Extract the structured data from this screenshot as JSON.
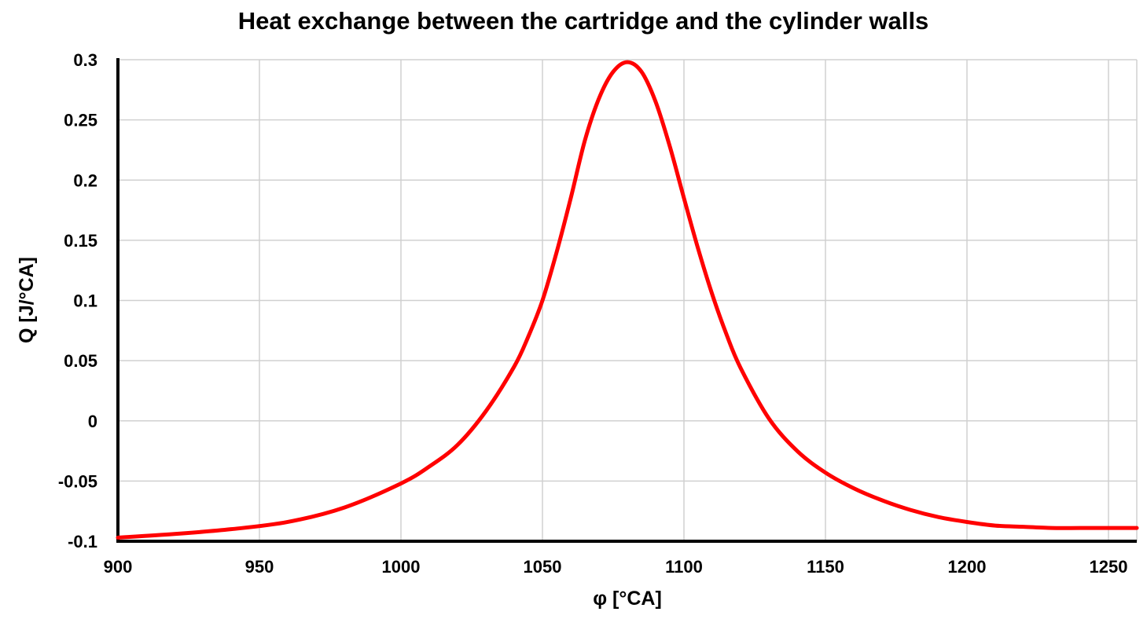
{
  "chart_data": {
    "type": "line",
    "title": "Heat exchange between the cartridge and the cylinder walls",
    "xlabel": "φ [°CA]",
    "ylabel": "Q [J/°CA]",
    "xlim": [
      900,
      1260
    ],
    "ylim": [
      -0.1,
      0.3
    ],
    "x_ticks": [
      900,
      950,
      1000,
      1050,
      1100,
      1150,
      1200,
      1250
    ],
    "y_ticks": [
      -0.1,
      -0.05,
      0,
      0.05,
      0.1,
      0.15,
      0.2,
      0.25,
      0.3
    ],
    "x_tick_labels": [
      "900",
      "950",
      "1000",
      "1050",
      "1100",
      "1150",
      "1200",
      "1250"
    ],
    "y_tick_labels": [
      "-0.1",
      "-0.05",
      "0",
      "0.05",
      "0.1",
      "0.15",
      "0.2",
      "0.25",
      "0.3"
    ],
    "grid": true,
    "legend": "none",
    "series": [
      {
        "color": "#ff0000",
        "x": [
          900,
          920,
          940,
          960,
          980,
          1000,
          1010,
          1020,
          1030,
          1040,
          1045,
          1050,
          1055,
          1060,
          1065,
          1070,
          1075,
          1080,
          1085,
          1090,
          1095,
          1100,
          1105,
          1110,
          1115,
          1120,
          1130,
          1140,
          1150,
          1160,
          1170,
          1180,
          1190,
          1200,
          1210,
          1220,
          1230,
          1240,
          1250,
          1260
        ],
        "y": [
          -0.097,
          -0.094,
          -0.09,
          -0.084,
          -0.072,
          -0.052,
          -0.038,
          -0.02,
          0.008,
          0.045,
          0.07,
          0.1,
          0.14,
          0.185,
          0.233,
          0.268,
          0.29,
          0.298,
          0.29,
          0.265,
          0.228,
          0.185,
          0.143,
          0.105,
          0.072,
          0.044,
          0.002,
          -0.025,
          -0.043,
          -0.056,
          -0.066,
          -0.074,
          -0.08,
          -0.084,
          -0.087,
          -0.088,
          -0.089,
          -0.089,
          -0.089,
          -0.089
        ]
      }
    ]
  }
}
